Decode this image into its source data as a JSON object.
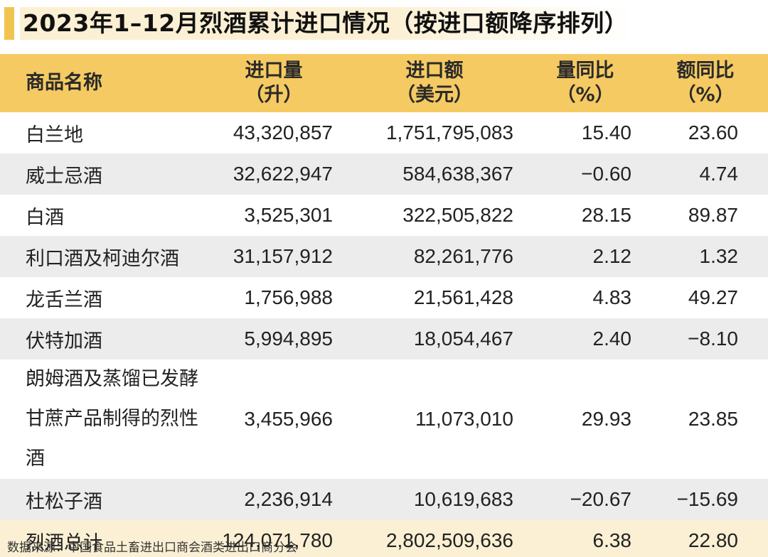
{
  "title": "2023年1–12月烈酒累计进口情况（按进口额降序排列）",
  "header": {
    "name": "商品名称",
    "volume": [
      "进口量",
      "（升）"
    ],
    "value": [
      "进口额",
      "（美元）"
    ],
    "volume_yoy": [
      "量同比",
      "（%）"
    ],
    "value_yoy": [
      "额同比",
      "（%）"
    ]
  },
  "rows": [
    {
      "name": [
        "白兰地"
      ],
      "volume": "43,320,857",
      "value": "1,751,795,083",
      "volume_yoy": "15.40",
      "value_yoy": "23.60"
    },
    {
      "name": [
        "威士忌酒"
      ],
      "volume": "32,622,947",
      "value": "584,638,367",
      "volume_yoy": "−0.60",
      "value_yoy": "4.74"
    },
    {
      "name": [
        "白酒"
      ],
      "volume": "3,525,301",
      "value": "322,505,822",
      "volume_yoy": "28.15",
      "value_yoy": "89.87"
    },
    {
      "name": [
        "利口酒及柯迪尔酒"
      ],
      "volume": "31,157,912",
      "value": "82,261,776",
      "volume_yoy": "2.12",
      "value_yoy": "1.32"
    },
    {
      "name": [
        "龙舌兰酒"
      ],
      "volume": "1,756,988",
      "value": "21,561,428",
      "volume_yoy": "4.83",
      "value_yoy": "49.27"
    },
    {
      "name": [
        "伏特加酒"
      ],
      "volume": "5,994,895",
      "value": "18,054,467",
      "volume_yoy": "2.40",
      "value_yoy": "−8.10"
    },
    {
      "name": [
        "朗姆酒及蒸馏已发酵",
        "甘蔗产品制得的烈性酒"
      ],
      "volume": "3,455,966",
      "value": "11,073,010",
      "volume_yoy": "29.93",
      "value_yoy": "23.85"
    },
    {
      "name": [
        "杜松子酒"
      ],
      "volume": "2,236,914",
      "value": "10,619,683",
      "volume_yoy": "−20.67",
      "value_yoy": "−15.69"
    }
  ],
  "total": {
    "name": "烈酒总计",
    "volume": "124,071,780",
    "value": "2,802,509,636",
    "volume_yoy": "6.38",
    "value_yoy": "22.80"
  },
  "source": "数据来源：中国食品土畜进出口商会酒类进出口商分会"
}
